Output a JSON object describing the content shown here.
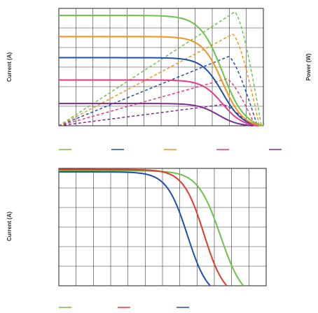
{
  "chart_data": [
    {
      "type": "line",
      "ylabel": "Current (A)",
      "y2label": "Power (W)",
      "xlim": [
        0,
        1
      ],
      "ylim": [
        0,
        1
      ],
      "grid": true,
      "legend": "bottom",
      "series": [
        {
          "color": "#6cc24a",
          "iv": {
            "isc": 0.94,
            "voc": 1.0,
            "knee": 0.8,
            "width": 0.055
          },
          "pmax": {
            "v": 0.86,
            "p": 0.97
          }
        },
        {
          "color": "#1f4fa8",
          "iv": {
            "isc": 0.58,
            "voc": 0.98,
            "knee": 0.8,
            "width": 0.05
          },
          "pmax": {
            "v": 0.83,
            "p": 0.59
          }
        },
        {
          "color": "#f7921e",
          "iv": {
            "isc": 0.76,
            "voc": 0.99,
            "knee": 0.8,
            "width": 0.05
          },
          "pmax": {
            "v": 0.85,
            "p": 0.78
          }
        },
        {
          "color": "#e8388a",
          "iv": {
            "isc": 0.39,
            "voc": 0.97,
            "knee": 0.8,
            "width": 0.05
          },
          "pmax": {
            "v": 0.82,
            "p": 0.4
          }
        },
        {
          "color": "#7b2d8e",
          "iv": {
            "isc": 0.19,
            "voc": 0.95,
            "knee": 0.78,
            "width": 0.05
          },
          "pmax": {
            "v": 0.8,
            "p": 0.18
          }
        }
      ]
    },
    {
      "type": "line",
      "ylabel": "Current (A)",
      "xlim": [
        0,
        1
      ],
      "ylim": [
        0,
        1
      ],
      "grid": true,
      "legend": "bottom",
      "series": [
        {
          "color": "#6cc24a",
          "iv": {
            "isc": 0.98,
            "voc": 0.89,
            "knee": 0.78,
            "width": 0.055
          }
        },
        {
          "color": "#e03a2c",
          "iv": {
            "isc": 0.99,
            "voc": 0.81,
            "knee": 0.7,
            "width": 0.05
          }
        },
        {
          "color": "#1f4fa8",
          "iv": {
            "isc": 0.97,
            "voc": 0.73,
            "knee": 0.62,
            "width": 0.05
          }
        }
      ]
    }
  ]
}
